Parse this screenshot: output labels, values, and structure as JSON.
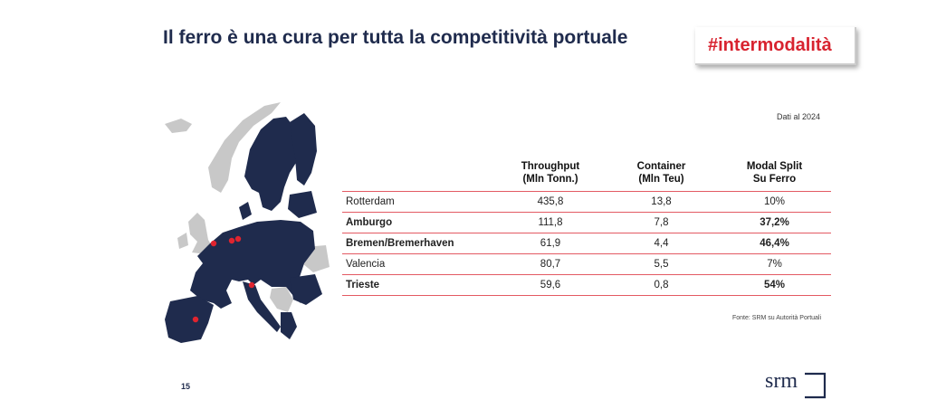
{
  "header": {
    "title": "Il ferro è una cura per tutta la competitività portuale",
    "tag": "#intermodalità"
  },
  "note": "Dati al 2024",
  "table": {
    "headers": [
      [
        "",
        ""
      ],
      [
        "Throughput",
        "(Mln Tonn.)"
      ],
      [
        "Container",
        "(Mln Teu)"
      ],
      [
        "Modal Split",
        "Su Ferro"
      ]
    ],
    "rows": [
      {
        "name": "Rotterdam",
        "throughput": "435,8",
        "container": "13,8",
        "split": "10%",
        "bold": false
      },
      {
        "name": "Amburgo",
        "throughput": "111,8",
        "container": "7,8",
        "split": "37,2%",
        "bold": true
      },
      {
        "name": "Bremen/Bremerhaven",
        "throughput": "61,9",
        "container": "4,4",
        "split": "46,4%",
        "bold": true
      },
      {
        "name": "Valencia",
        "throughput": "80,7",
        "container": "5,5",
        "split": "7%",
        "bold": false
      },
      {
        "name": "Trieste",
        "throughput": "59,6",
        "container": "0,8",
        "split": "54%",
        "bold": true
      }
    ]
  },
  "source": "Fonte: SRM su Autorità Portuali",
  "page_number": "15",
  "logo_text": "srm",
  "colors": {
    "navy": "#1f2b4d",
    "red": "#d8232f",
    "grey": "#c8c8c8",
    "line": "#e35a63"
  }
}
